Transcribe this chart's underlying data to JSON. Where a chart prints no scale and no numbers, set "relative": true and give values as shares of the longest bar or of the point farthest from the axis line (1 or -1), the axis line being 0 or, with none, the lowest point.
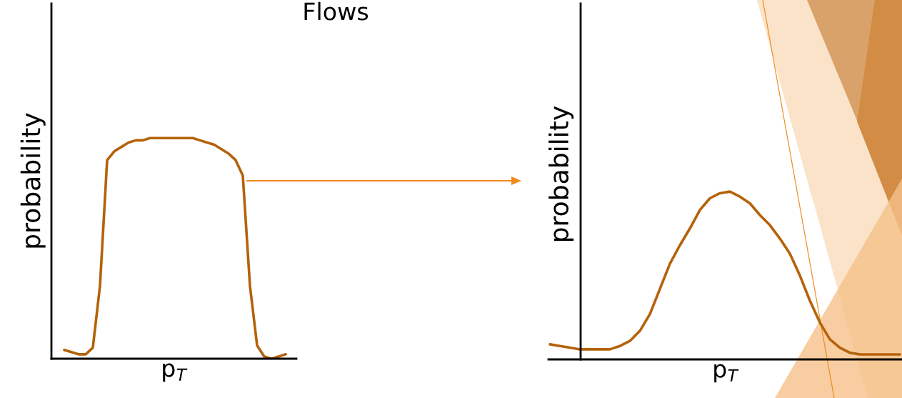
{
  "chart_data": [
    {
      "type": "line",
      "title": "Flows",
      "xlabel": "p$_{T}$",
      "ylabel": "probability",
      "relative": true,
      "tick_labels": false,
      "grid": false,
      "legend": false,
      "marker": "none",
      "line_style": "solid",
      "categories": [
        null,
        null,
        null,
        null,
        null,
        null,
        null,
        null,
        null,
        null,
        null,
        null,
        null,
        null,
        null,
        null,
        null,
        null,
        null,
        null,
        null,
        null,
        null,
        null,
        null,
        null,
        null,
        null,
        null,
        null,
        null,
        null
      ],
      "series": [
        {
          "color": "#b5620a",
          "values": [
            0.04,
            0.03,
            0.02,
            0.02,
            0.05,
            0.33,
            0.9,
            0.94,
            0.96,
            0.98,
            0.99,
            0.99,
            1.0,
            1.0,
            1.0,
            1.0,
            1.0,
            1.0,
            1.0,
            0.99,
            0.98,
            0.97,
            0.95,
            0.93,
            0.9,
            0.83,
            0.33,
            0.06,
            0.01,
            0.0,
            0.01,
            0.02
          ]
        }
      ]
    },
    {
      "type": "line",
      "xlabel": "p$_{T}$",
      "ylabel": "probability",
      "relative": true,
      "tick_labels": false,
      "grid": false,
      "legend": false,
      "marker": "none",
      "line_style": "solid",
      "categories": [
        null,
        null,
        null,
        null,
        null,
        null,
        null,
        null,
        null,
        null,
        null,
        null,
        null,
        null,
        null,
        null,
        null,
        null,
        null,
        null,
        null,
        null,
        null,
        null,
        null,
        null,
        null,
        null,
        null,
        null,
        null,
        null,
        null,
        null,
        null,
        null
      ],
      "series": [
        {
          "color": "#b5620a",
          "values": [
            0.09,
            0.08,
            0.07,
            0.06,
            0.06,
            0.06,
            0.06,
            0.08,
            0.11,
            0.17,
            0.27,
            0.42,
            0.57,
            0.68,
            0.78,
            0.89,
            0.96,
            0.99,
            1.0,
            0.97,
            0.93,
            0.86,
            0.8,
            0.72,
            0.63,
            0.5,
            0.35,
            0.22,
            0.12,
            0.07,
            0.04,
            0.03,
            0.03,
            0.03,
            0.03,
            0.03
          ]
        }
      ]
    }
  ]
}
